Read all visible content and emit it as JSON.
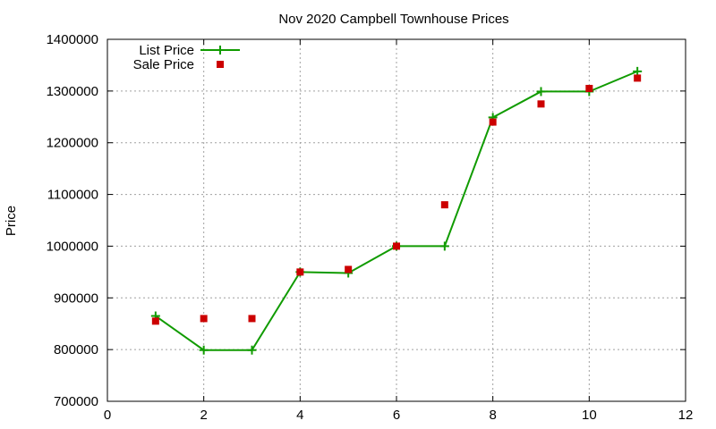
{
  "chart_data": {
    "type": "line",
    "title": "Nov 2020 Campbell Townhouse Prices",
    "xlabel": "",
    "ylabel": "Price",
    "xlim": [
      0,
      12
    ],
    "ylim": [
      700000,
      1400000
    ],
    "xticks": [
      0,
      2,
      4,
      6,
      8,
      10,
      12
    ],
    "yticks": [
      700000,
      800000,
      900000,
      1000000,
      1100000,
      1200000,
      1300000,
      1400000
    ],
    "grid": true,
    "legend_position": "top-left",
    "series": [
      {
        "name": "List Price",
        "style": "lines+plus-markers",
        "color": "#109b00",
        "points": [
          [
            1,
            865000
          ],
          [
            2,
            799000
          ],
          [
            3,
            799000
          ],
          [
            4,
            950000
          ],
          [
            5,
            948000
          ],
          [
            6,
            1000000
          ],
          [
            7,
            1000000
          ],
          [
            8,
            1249000
          ],
          [
            9,
            1299000
          ],
          [
            10,
            1299000
          ],
          [
            11,
            1338000
          ]
        ]
      },
      {
        "name": "Sale Price",
        "style": "square-markers",
        "color": "#cc0000",
        "points": [
          [
            1,
            855000
          ],
          [
            2,
            860000
          ],
          [
            3,
            860000
          ],
          [
            4,
            950000
          ],
          [
            5,
            955000
          ],
          [
            6,
            1000000
          ],
          [
            7,
            1080000
          ],
          [
            8,
            1240000
          ],
          [
            9,
            1275000
          ],
          [
            10,
            1305000
          ],
          [
            11,
            1325000
          ]
        ]
      }
    ]
  }
}
